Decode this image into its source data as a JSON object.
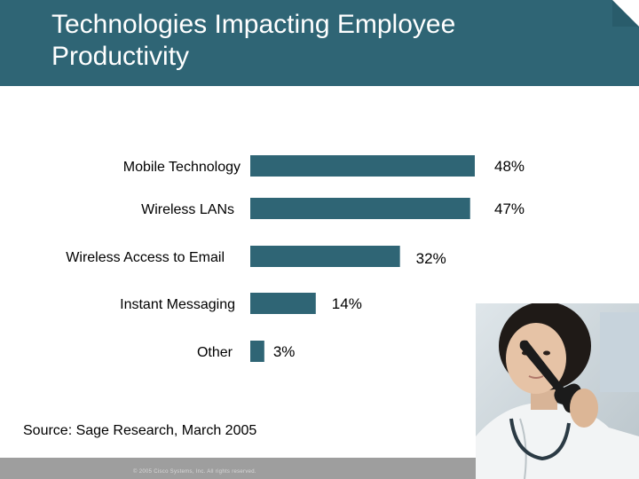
{
  "slide": {
    "title": "Technologies Impacting Employee Productivity",
    "source": "Source: Sage Research, March 2005",
    "copyright": "© 2005 Cisco Systems, Inc. All rights reserved."
  },
  "colors": {
    "header": "#2f6575",
    "bar": "#2f6575",
    "footer": "#9e9e9e"
  },
  "photo": {
    "subject": "woman-on-phone-photo"
  },
  "chart_data": {
    "type": "bar",
    "orientation": "horizontal",
    "title": "",
    "xlabel": "",
    "ylabel": "",
    "categories": [
      "Mobile Technology",
      "Wireless LANs",
      "Wireless Access to Email",
      "Instant Messaging",
      "Other"
    ],
    "values": [
      48,
      47,
      32,
      14,
      3
    ],
    "value_labels": [
      "48%",
      "47%",
      "32%",
      "14%",
      "3%"
    ],
    "unit": "%",
    "xlim": [
      0,
      48
    ],
    "grid": false,
    "legend": "none"
  }
}
